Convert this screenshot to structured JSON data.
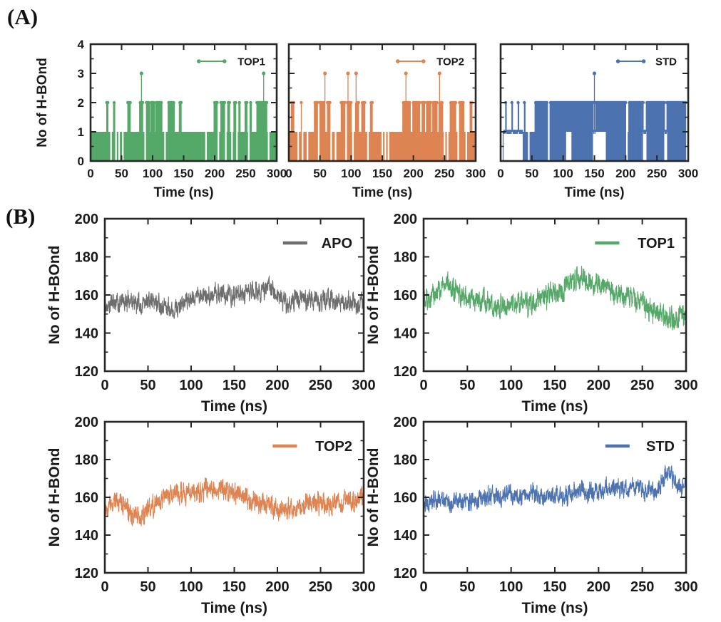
{
  "figure": {
    "panel_a_label": "(A)",
    "panel_b_label": "(B)"
  },
  "colors": {
    "green": "#55a868",
    "orange": "#dd8452",
    "blue": "#4c72b0",
    "gray": "#6e6e6e",
    "axis": "#262626",
    "text": "#1a1a1a"
  },
  "chart_data": [
    {
      "id": "a1",
      "type": "impulse",
      "legend": "TOP1",
      "color": "#55a868",
      "title": "",
      "xlabel": "Time (ns)",
      "ylabel": "No of H-BOnd",
      "xlim": [
        0,
        300
      ],
      "ylim": [
        0,
        4
      ],
      "xticks": [
        0,
        50,
        100,
        150,
        200,
        250,
        300
      ],
      "yticks": [
        0,
        1,
        2,
        3,
        4
      ],
      "yminor": 0.5,
      "show_ytick_labels": true,
      "baseline": 1,
      "twos": [
        [
          26,
          28
        ],
        [
          37,
          39
        ],
        [
          60,
          64
        ],
        [
          79,
          84
        ],
        [
          90,
          95
        ],
        [
          97,
          103
        ],
        [
          105,
          115
        ],
        [
          125,
          135
        ],
        [
          143,
          146
        ],
        [
          199,
          205
        ],
        [
          210,
          216
        ],
        [
          221,
          224
        ],
        [
          231,
          234
        ],
        [
          239,
          241
        ],
        [
          249,
          252
        ],
        [
          257,
          259
        ],
        [
          268,
          284
        ]
      ],
      "threes": [
        82,
        279
      ],
      "zeros": [
        33,
        41,
        46,
        52,
        88,
        120,
        186,
        206,
        218,
        228,
        236,
        255,
        287
      ],
      "floors": []
    },
    {
      "id": "a2",
      "type": "impulse",
      "legend": "TOP2",
      "color": "#dd8452",
      "title": "",
      "xlabel": "Time (ns)",
      "ylabel": "",
      "xlim": [
        0,
        300
      ],
      "ylim": [
        0,
        4
      ],
      "xticks": [
        0,
        50,
        100,
        150,
        200,
        250,
        300
      ],
      "yticks": [
        0,
        1,
        2,
        3,
        4
      ],
      "yminor": 0.5,
      "show_ytick_labels": false,
      "baseline": 1,
      "twos": [
        [
          4,
          8
        ],
        [
          20,
          21
        ],
        [
          41,
          46
        ],
        [
          50,
          58
        ],
        [
          62,
          66
        ],
        [
          84,
          90
        ],
        [
          94,
          100
        ],
        [
          107,
          112
        ],
        [
          117,
          122
        ],
        [
          131,
          134
        ],
        [
          183,
          195
        ],
        [
          199,
          210
        ],
        [
          214,
          218
        ],
        [
          221,
          228
        ],
        [
          231,
          238
        ],
        [
          241,
          247
        ],
        [
          259,
          268
        ],
        [
          274,
          281
        ],
        [
          291,
          294
        ]
      ],
      "threes": [
        58,
        95,
        108,
        188,
        242
      ],
      "zeros": [
        15,
        22,
        30,
        48,
        68,
        75,
        92,
        103,
        127,
        150,
        155,
        160,
        250,
        255,
        272,
        285
      ],
      "floors": []
    },
    {
      "id": "a3",
      "type": "impulse",
      "legend": "STD",
      "color": "#4c72b0",
      "title": "",
      "xlabel": "Time (ns)",
      "ylabel": "",
      "xlim": [
        0,
        300
      ],
      "ylim": [
        0,
        4
      ],
      "xticks": [
        0,
        50,
        100,
        150,
        200,
        250,
        300
      ],
      "yticks": [
        0,
        1,
        2,
        3,
        4
      ],
      "yminor": 0.5,
      "show_ytick_labels": false,
      "baseline": 1,
      "twos": [
        [
          8,
          9
        ],
        [
          18,
          19
        ],
        [
          28,
          29
        ],
        [
          38,
          39
        ],
        [
          55,
          75
        ],
        [
          78,
          148
        ],
        [
          152,
          200
        ],
        [
          205,
          228
        ],
        [
          233,
          262
        ],
        [
          266,
          297
        ]
      ],
      "threes": [
        150
      ],
      "zeros": [
        2,
        45,
        77,
        202,
        298
      ],
      "floors": [
        [
          5,
          35
        ],
        [
          105,
          113
        ],
        [
          148,
          168
        ],
        [
          228,
          233
        ],
        [
          262,
          266
        ]
      ]
    },
    {
      "id": "b1",
      "type": "line",
      "legend": "APO",
      "color": "#6e6e6e",
      "title": "",
      "xlabel": "Time (ns)",
      "ylabel": "No of H-BOnd",
      "xlim": [
        0,
        300
      ],
      "ylim": [
        120,
        200
      ],
      "xticks": [
        0,
        50,
        100,
        150,
        200,
        250,
        300
      ],
      "yticks": [
        120,
        140,
        160,
        180,
        200
      ],
      "yminor": 10,
      "show_ytick_labels": true,
      "trend_step": 10,
      "trend": [
        154,
        156,
        156,
        157,
        155,
        156,
        157,
        154,
        153,
        156,
        159,
        160,
        159,
        161,
        160,
        159,
        160,
        162,
        161,
        166,
        160,
        155,
        157,
        158,
        157,
        156,
        158,
        155,
        157,
        155,
        156
      ],
      "noise_amp": 5.5,
      "seed": 11
    },
    {
      "id": "b2",
      "type": "line",
      "legend": "TOP1",
      "color": "#55a868",
      "title": "",
      "xlabel": "Time (ns)",
      "ylabel": "No of H-BOnd",
      "xlim": [
        0,
        300
      ],
      "ylim": [
        120,
        200
      ],
      "xticks": [
        0,
        50,
        100,
        150,
        200,
        250,
        300
      ],
      "yticks": [
        120,
        140,
        160,
        180,
        200
      ],
      "yminor": 10,
      "show_ytick_labels": true,
      "trend_step": 10,
      "trend": [
        158,
        161,
        163,
        166,
        161,
        158,
        156,
        157,
        155,
        153,
        154,
        156,
        155,
        158,
        159,
        161,
        163,
        166,
        171,
        167,
        165,
        163,
        161,
        160,
        159,
        156,
        152,
        149,
        147,
        148,
        151
      ],
      "noise_amp": 6.5,
      "seed": 22
    },
    {
      "id": "b3",
      "type": "line",
      "legend": "TOP2",
      "color": "#dd8452",
      "title": "",
      "xlabel": "Time (ns)",
      "ylabel": "No of H-BOnd",
      "xlim": [
        0,
        300
      ],
      "ylim": [
        120,
        200
      ],
      "xticks": [
        0,
        50,
        100,
        150,
        200,
        250,
        300
      ],
      "yticks": [
        120,
        140,
        160,
        180,
        200
      ],
      "yminor": 10,
      "show_ytick_labels": true,
      "trend_step": 10,
      "trend": [
        153,
        157,
        156,
        152,
        150,
        153,
        157,
        160,
        161,
        162,
        162,
        163,
        164,
        163,
        165,
        162,
        160,
        158,
        157,
        156,
        154,
        153,
        155,
        156,
        157,
        157,
        156,
        157,
        158,
        157,
        161
      ],
      "noise_amp": 6,
      "seed": 33
    },
    {
      "id": "b4",
      "type": "line",
      "legend": "STD",
      "color": "#4c72b0",
      "title": "",
      "xlabel": "Time (ns)",
      "ylabel": "No of H-BOnd",
      "xlim": [
        0,
        300
      ],
      "ylim": [
        120,
        200
      ],
      "xticks": [
        0,
        50,
        100,
        150,
        200,
        250,
        300
      ],
      "yticks": [
        120,
        140,
        160,
        180,
        200
      ],
      "yminor": 10,
      "show_ytick_labels": true,
      "trend_step": 10,
      "trend": [
        155,
        158,
        159,
        157,
        158,
        158,
        159,
        160,
        161,
        160,
        162,
        161,
        162,
        162,
        160,
        161,
        160,
        162,
        163,
        162,
        163,
        165,
        165,
        164,
        166,
        164,
        163,
        166,
        176,
        164,
        166
      ],
      "noise_amp": 5.5,
      "seed": 44
    }
  ]
}
